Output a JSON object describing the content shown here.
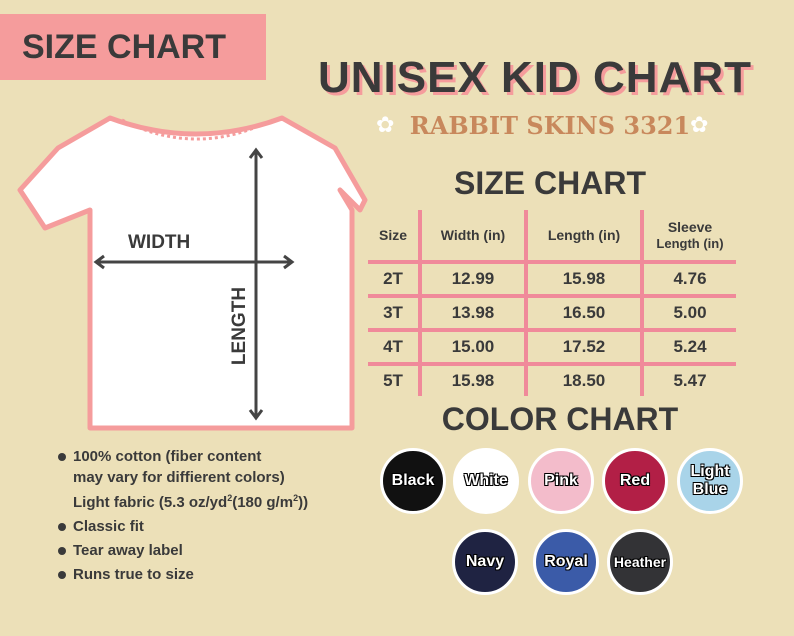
{
  "tag": "SIZE CHART",
  "title": "UNISEX KID CHART",
  "subtitle": "RABBIT SKINS 3321",
  "shirt": {
    "width_label": "WIDTH",
    "length_label": "LENGTH"
  },
  "size_chart": {
    "heading": "SIZE CHART",
    "headers": [
      "Size",
      "Width (in)",
      "Length (in)",
      "Sleeve",
      "Length (in)"
    ],
    "rows": [
      [
        "2T",
        "12.99",
        "15.98",
        "4.76"
      ],
      [
        "3T",
        "13.98",
        "16.50",
        "5.00"
      ],
      [
        "4T",
        "15.00",
        "17.52",
        "5.24"
      ],
      [
        "5T",
        "15.98",
        "18.50",
        "5.47"
      ]
    ]
  },
  "features": {
    "line1": "100% cotton (fiber content",
    "line2": "may vary for diffierent colors)",
    "line3a": "Light fabric (5.3 oz/yd",
    "sup1": "2",
    "line3b": "(180 g/m",
    "sup2": "2",
    "line3c": "))",
    "items": [
      "Classic fit",
      "Tear away label",
      "Runs true to size"
    ]
  },
  "color_chart": {
    "heading": "COLOR CHART",
    "colors": [
      {
        "name": "Black",
        "hex": "#111111"
      },
      {
        "name": "White",
        "hex": "#ffffff"
      },
      {
        "name": "Pink",
        "hex": "#f3bccb"
      },
      {
        "name": "Red",
        "hex": "#b21f46"
      },
      {
        "name": "Light Blue",
        "hex": "#a9d4e9"
      },
      {
        "name": "Navy",
        "hex": "#1f2342"
      },
      {
        "name": "Royal",
        "hex": "#3b5ba8"
      },
      {
        "name": "Heather",
        "hex": "#333336"
      }
    ]
  },
  "colors": {
    "background": "#ece0b8",
    "accent": "#f59c9c",
    "text": "#3a3a3a"
  }
}
